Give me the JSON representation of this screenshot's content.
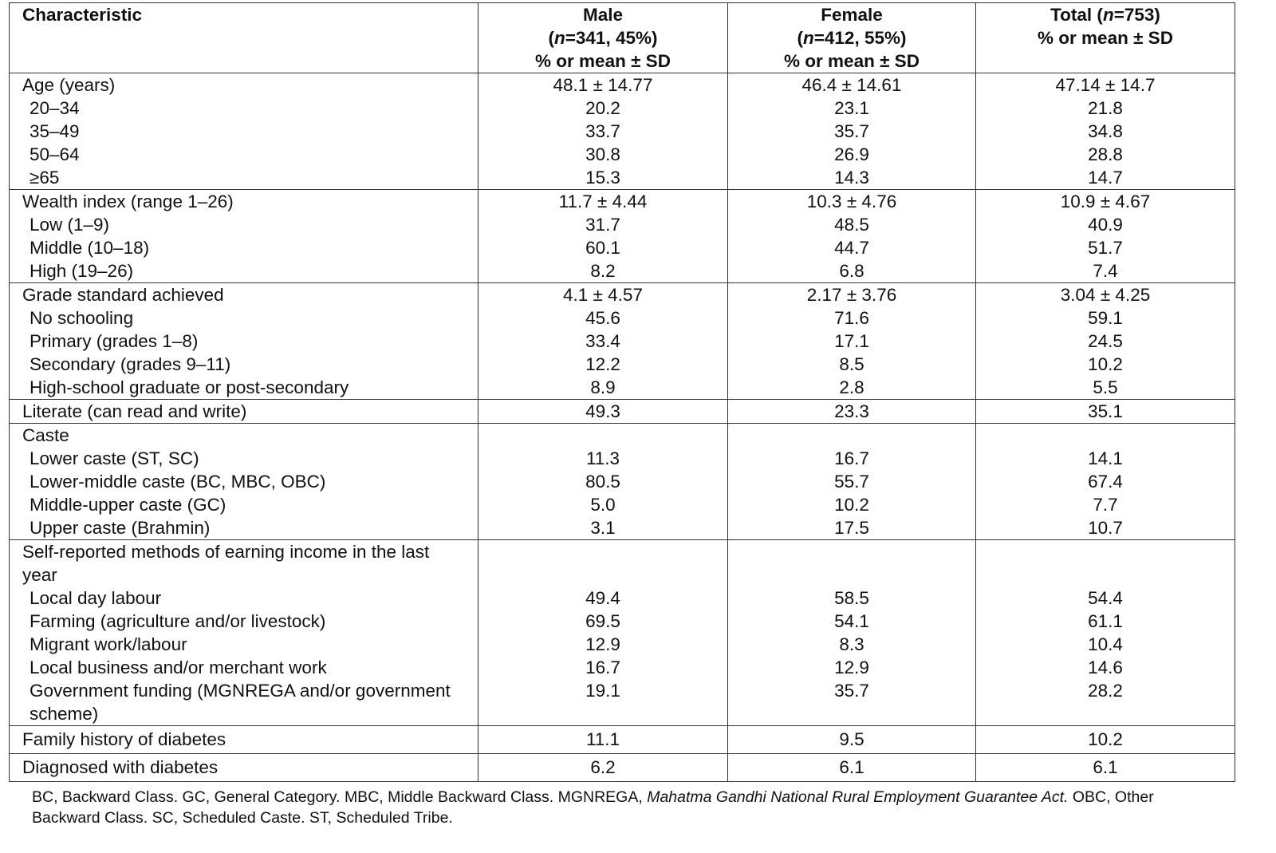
{
  "header": {
    "characteristic": "Characteristic",
    "male": {
      "title": "Male",
      "n_prefix": "n",
      "n_rest": "=341, 45%)",
      "sub": "% or mean ± SD"
    },
    "female": {
      "title": "Female",
      "n_prefix": "n",
      "n_rest": "=412, 55%)",
      "sub": "% or mean ± SD"
    },
    "total": {
      "title": "Total (",
      "n_prefix": "n",
      "n_rest": "=753)",
      "sub": "% or mean ± SD"
    }
  },
  "sections": [
    {
      "rows": [
        {
          "label": "Age (years)",
          "indent": false,
          "male": "48.1 ± 14.77",
          "female": "46.4 ± 14.61",
          "total": "47.14 ± 14.7"
        },
        {
          "label": "20–34",
          "indent": true,
          "male": "20.2",
          "female": "23.1",
          "total": "21.8"
        },
        {
          "label": "35–49",
          "indent": true,
          "male": "33.7",
          "female": "35.7",
          "total": "34.8"
        },
        {
          "label": "50–64",
          "indent": true,
          "male": "30.8",
          "female": "26.9",
          "total": "28.8"
        },
        {
          "label": "≥65",
          "indent": true,
          "male": "15.3",
          "female": "14.3",
          "total": "14.7"
        }
      ]
    },
    {
      "rows": [
        {
          "label": "Wealth index (range 1–26)",
          "indent": false,
          "male": "11.7 ± 4.44",
          "female": "10.3 ± 4.76",
          "total": "10.9 ± 4.67"
        },
        {
          "label": "Low (1–9)",
          "indent": true,
          "male": "31.7",
          "female": "48.5",
          "total": "40.9"
        },
        {
          "label": "Middle (10–18)",
          "indent": true,
          "male": "60.1",
          "female": "44.7",
          "total": "51.7"
        },
        {
          "label": "High (19–26)",
          "indent": true,
          "male": "8.2",
          "female": "6.8",
          "total": "7.4"
        }
      ]
    },
    {
      "rows": [
        {
          "label": "Grade standard achieved",
          "indent": false,
          "male": "4.1 ± 4.57",
          "female": "2.17 ± 3.76",
          "total": "3.04 ± 4.25"
        },
        {
          "label": "No schooling",
          "indent": true,
          "male": "45.6",
          "female": "71.6",
          "total": "59.1"
        },
        {
          "label": "Primary (grades 1–8)",
          "indent": true,
          "male": "33.4",
          "female": "17.1",
          "total": "24.5"
        },
        {
          "label": "Secondary (grades 9–11)",
          "indent": true,
          "male": "12.2",
          "female": "8.5",
          "total": "10.2"
        },
        {
          "label": "High-school graduate or post-secondary",
          "indent": true,
          "male": "8.9",
          "female": "2.8",
          "total": "5.5"
        }
      ]
    },
    {
      "rows": [
        {
          "label": "Literate (can read and write)",
          "indent": false,
          "male": "49.3",
          "female": "23.3",
          "total": "35.1"
        }
      ]
    },
    {
      "rows": [
        {
          "label": "Caste",
          "indent": false,
          "male": "",
          "female": "",
          "total": ""
        },
        {
          "label": "Lower caste (ST, SC)",
          "indent": true,
          "male": "11.3",
          "female": "16.7",
          "total": "14.1"
        },
        {
          "label": "Lower-middle caste (BC, MBC, OBC)",
          "indent": true,
          "male": "80.5",
          "female": "55.7",
          "total": "67.4"
        },
        {
          "label": "Middle-upper caste (GC)",
          "indent": true,
          "male": "5.0",
          "female": "10.2",
          "total": "7.7"
        },
        {
          "label": "Upper caste (Brahmin)",
          "indent": true,
          "male": "3.1",
          "female": "17.5",
          "total": "10.7"
        }
      ]
    },
    {
      "rows": [
        {
          "label": "Self-reported methods of earning income in the last year",
          "indent": false,
          "male": "",
          "female": "",
          "total": ""
        },
        {
          "label": "Local day labour",
          "indent": true,
          "male": "49.4",
          "female": "58.5",
          "total": "54.4"
        },
        {
          "label": "Farming (agriculture and/or livestock)",
          "indent": true,
          "male": "69.5",
          "female": "54.1",
          "total": "61.1"
        },
        {
          "label": "Migrant work/labour",
          "indent": true,
          "male": "12.9",
          "female": "8.3",
          "total": "10.4"
        },
        {
          "label": "Local business and/or merchant work",
          "indent": true,
          "male": "16.7",
          "female": "12.9",
          "total": "14.6"
        },
        {
          "label": "Government funding (MGNREGA and/or government scheme)",
          "indent": true,
          "male": "19.1",
          "female": "35.7",
          "total": "28.2"
        }
      ]
    },
    {
      "rows": [
        {
          "label": "Family history of diabetes",
          "indent": false,
          "male": "11.1",
          "female": "9.5",
          "total": "10.2"
        }
      ]
    },
    {
      "rows": [
        {
          "label": "Diagnosed with diabetes",
          "indent": false,
          "male": "6.2",
          "female": "6.1",
          "total": "6.1"
        }
      ]
    }
  ],
  "footnote": {
    "part1": "BC, Backward Class. GC, General Category. MBC, Middle Backward Class. MGNREGA, ",
    "italic": "Mahatma Gandhi National Rural Employment Guarantee Act.",
    "part2": " OBC, Other Backward Class. SC, Scheduled Caste. ST, Scheduled Tribe."
  }
}
